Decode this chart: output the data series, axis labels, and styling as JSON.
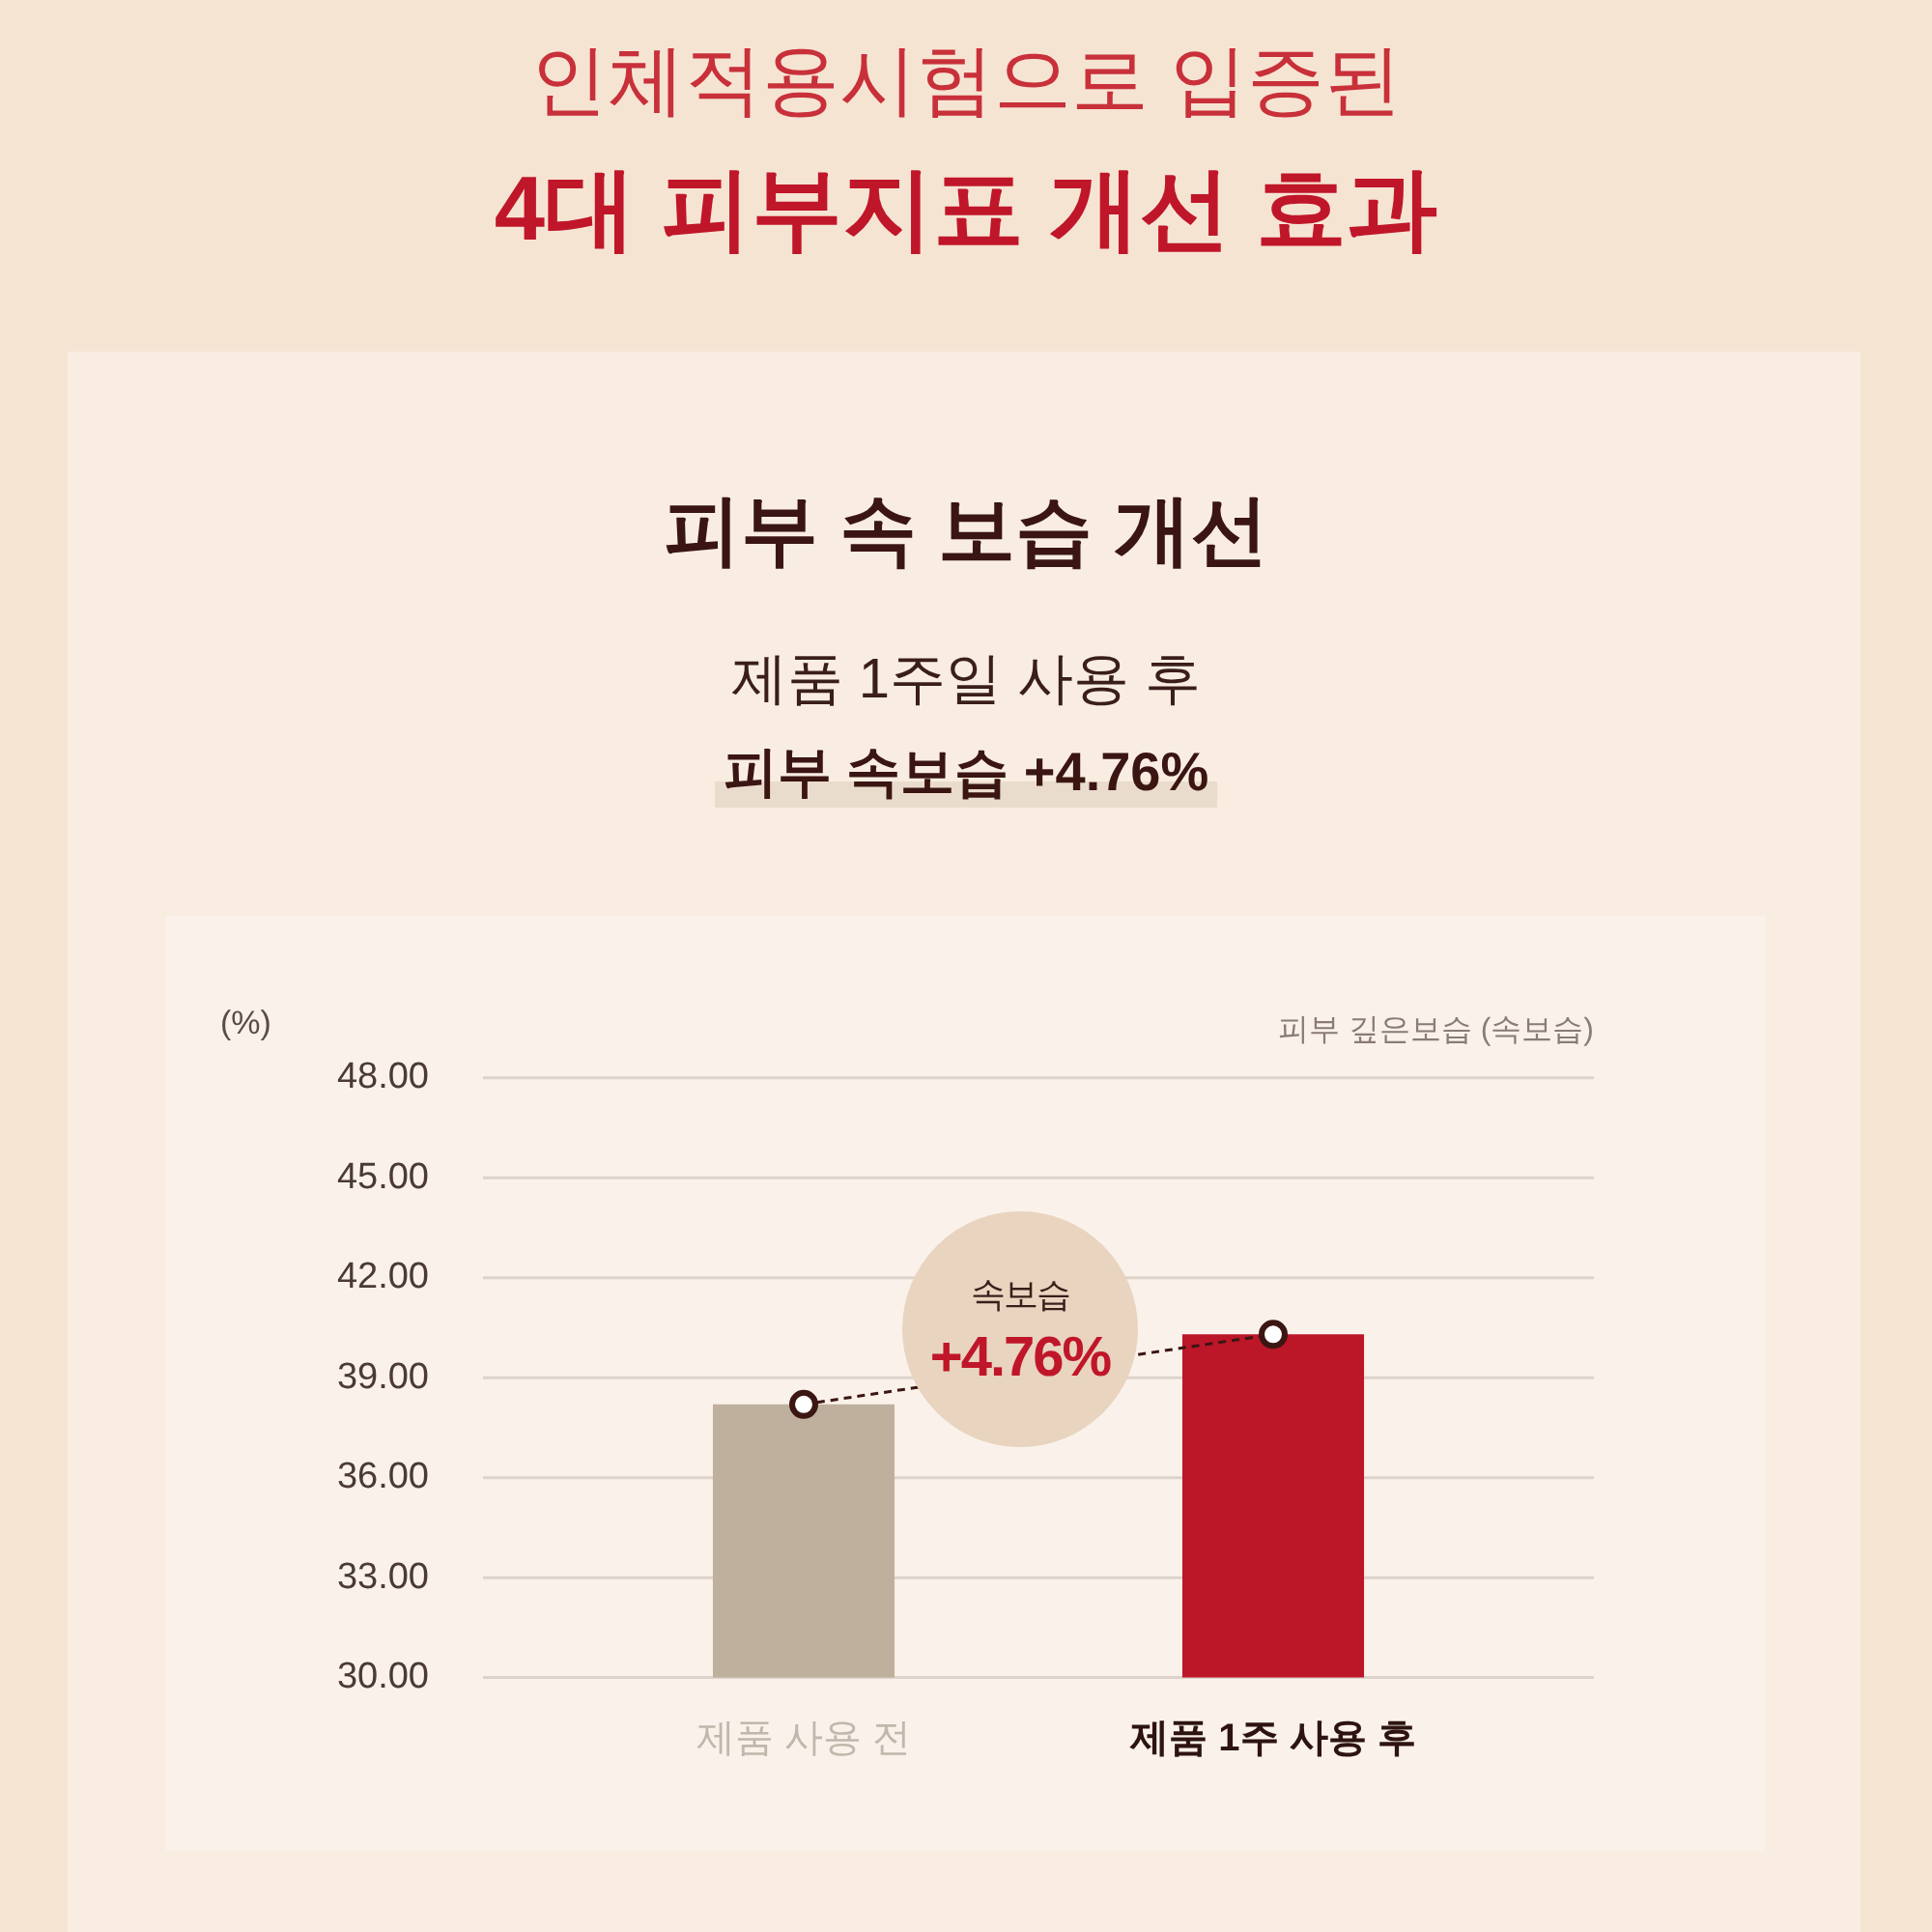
{
  "chart_data": {
    "type": "bar",
    "title": "인체적용시험으로 입증된\n4대 피부지표 개선 효과",
    "subtitle": "피부 속 보습 개선",
    "ylabel": "(%)",
    "categories": [
      "제품 사용 전",
      "제품 1주 사용 후"
    ],
    "series": [
      {
        "colors": [
          "#bfb09e",
          "#bc1629"
        ],
        "values": [
          38.2,
          40.3
        ]
      },
      {
        "type": "line",
        "color": "#3b1612",
        "values": [
          38.2,
          40.3
        ],
        "marker": "circle",
        "line_style": "dashed"
      }
    ],
    "ylim": [
      30,
      48
    ],
    "yticks": [
      {
        "value": 30,
        "label": "30.00"
      },
      {
        "value": 33,
        "label": "33.00"
      },
      {
        "value": 36,
        "label": "36.00"
      },
      {
        "value": 39,
        "label": "39.00"
      },
      {
        "value": 42,
        "label": "42.00"
      },
      {
        "value": 45,
        "label": "45.00"
      },
      {
        "value": 48,
        "label": "48.00"
      }
    ],
    "grid": "y",
    "annotations": [
      "제품 1주일 사용 후",
      "피부 속보습 +4.76%",
      "피부 깊은보습 (속보습)",
      "속보습",
      "+4.76%"
    ]
  }
}
